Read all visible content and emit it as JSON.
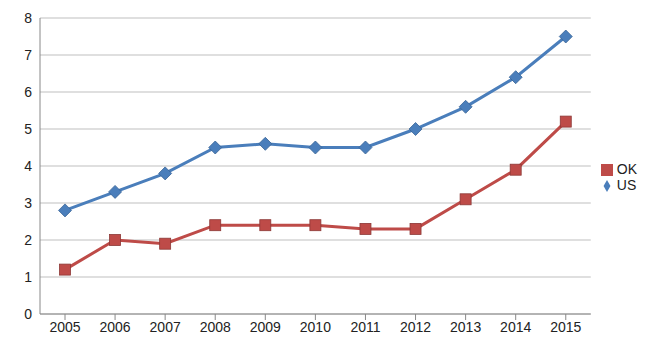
{
  "chart_data": {
    "type": "line",
    "categories": [
      "2005",
      "2006",
      "2007",
      "2008",
      "2009",
      "2010",
      "2011",
      "2012",
      "2013",
      "2014",
      "2015"
    ],
    "series": [
      {
        "name": "US",
        "color": "#4a7ebb",
        "marker": "diamond",
        "values": [
          2.8,
          3.3,
          3.8,
          4.5,
          4.6,
          4.5,
          4.5,
          5.0,
          5.6,
          6.4,
          7.5
        ]
      },
      {
        "name": "OK",
        "color": "#be4b48",
        "marker": "square",
        "values": [
          1.2,
          2.0,
          1.9,
          2.4,
          2.4,
          2.4,
          2.3,
          2.3,
          3.1,
          3.9,
          5.2
        ]
      }
    ],
    "ylim": [
      0,
      8
    ],
    "yticks": [
      0,
      1,
      2,
      3,
      4,
      5,
      6,
      7,
      8
    ],
    "grid": true,
    "legend": "right"
  }
}
